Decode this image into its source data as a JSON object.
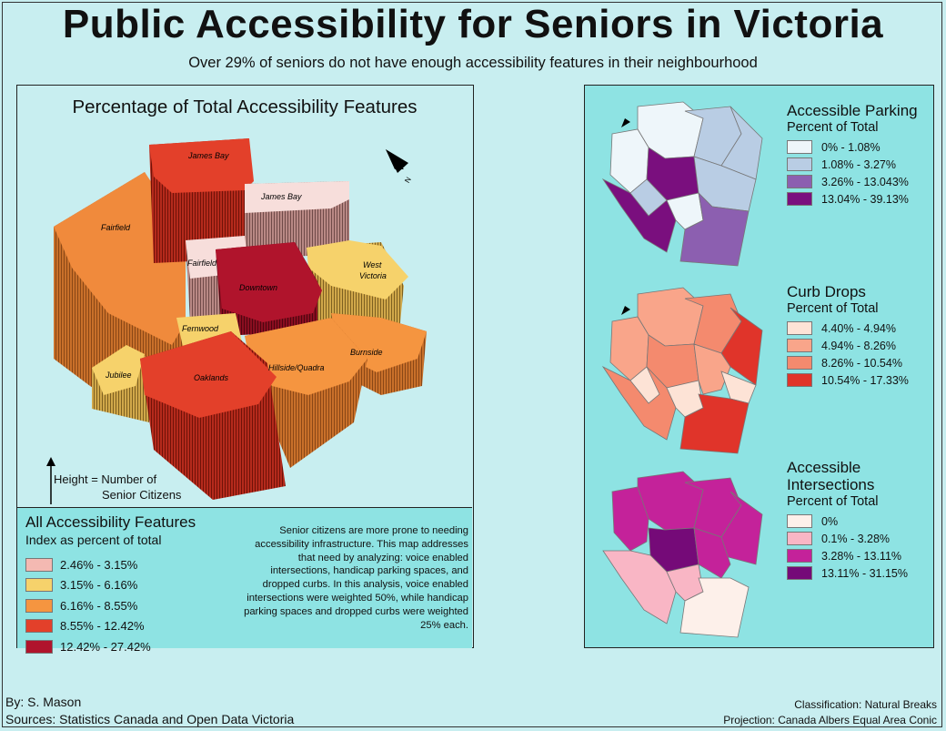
{
  "title": "Public Accessibility for Seniors in Victoria",
  "subtitle": "Over 29% of seniors do not have enough accessibility features in their neighbourhood",
  "main_map": {
    "title": "Percentage of Total Accessibility Features",
    "height_note_line1": "Height = Number of",
    "height_note_line2": "Senior Citizens",
    "neighbourhood_labels": {
      "james_bay_north": "James Bay",
      "james_bay_south": "James Bay",
      "fairfield_west": "Fairfield",
      "fairfield_center": "Fairfield",
      "downtown": "Downtown",
      "west_victoria": "West Victoria",
      "fernwood": "Fernwood",
      "burnside": "Burnside",
      "jubilee": "Jubilee",
      "oaklands": "Oaklands",
      "hillside_quadra": "Hillside/Quadra"
    },
    "north_arrow_label": "N"
  },
  "main_legend": {
    "title": "All Accessibility Features",
    "subtitle": "Index as percent of total",
    "classes": [
      {
        "label": "2.46% - 3.15%",
        "color": "#f4b9b2"
      },
      {
        "label": "3.15% - 6.16%",
        "color": "#f6d26b"
      },
      {
        "label": "6.16% - 8.55%",
        "color": "#f59540"
      },
      {
        "label": "8.55% - 12.42%",
        "color": "#e3402a"
      },
      {
        "label": "12.42% - 27.42%",
        "color": "#b0142c"
      }
    ],
    "note": "Senior citizens are more prone to needing accessibility infrastructure. This map addresses that need by analyzing: voice enabled intersections, handicap parking spaces, and dropped curbs. In this analysis, voice enabled intersections were weighted 50%, while handicap parking spaces and dropped curbs were weighted 25% each."
  },
  "parking": {
    "title": "Accessible Parking",
    "subtitle": "Percent of Total",
    "classes": [
      {
        "label": "0% - 1.08%",
        "color": "#eef6fa"
      },
      {
        "label": "1.08% - 3.27%",
        "color": "#b9cde4"
      },
      {
        "label": "3.26% - 13.043%",
        "color": "#8c5fb0"
      },
      {
        "label": "13.04% - 39.13%",
        "color": "#7a0f7e"
      }
    ]
  },
  "curbs": {
    "title": "Curb Drops",
    "subtitle": "Percent of Total",
    "classes": [
      {
        "label": "4.40% - 4.94%",
        "color": "#fde3d6"
      },
      {
        "label": "4.94% - 8.26%",
        "color": "#f9a58a"
      },
      {
        "label": "8.26% - 10.54%",
        "color": "#f48a6e"
      },
      {
        "label": "10.54% - 17.33%",
        "color": "#e0342a"
      }
    ]
  },
  "intersections": {
    "title_line1": "Accessible",
    "title_line2": "Intersections",
    "subtitle": "Percent of Total",
    "classes": [
      {
        "label": "0%",
        "color": "#fdf0ea"
      },
      {
        "label": "0.1% - 3.28%",
        "color": "#f9b6c5"
      },
      {
        "label": "3.28% - 13.11%",
        "color": "#c4229a"
      },
      {
        "label": "13.11% - 31.15%",
        "color": "#750a78"
      }
    ]
  },
  "footer": {
    "author": "By: S. Mason",
    "sources": "Sources: Statistics Canada and Open Data Victoria",
    "classification": "Classification: Natural Breaks",
    "projection": "Projection: Canada Albers Equal Area Conic"
  }
}
